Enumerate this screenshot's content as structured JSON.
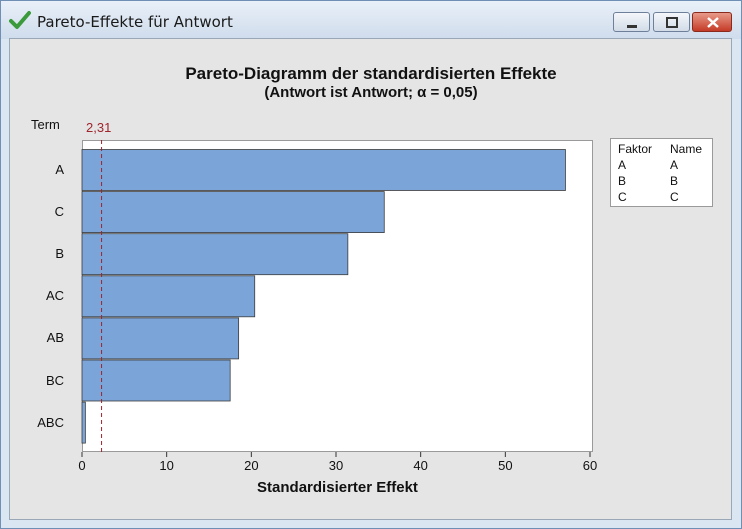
{
  "window": {
    "title": "Pareto-Effekte für Antwort",
    "controls": {
      "minimize": "minimize",
      "maximize": "maximize",
      "close": "close"
    }
  },
  "chart_data": {
    "type": "bar",
    "orientation": "horizontal",
    "title": "Pareto-Diagramm der standardisierten Effekte",
    "subtitle": "(Antwort ist Antwort; α = 0,05)",
    "xlabel": "Standardisierter Effekt",
    "ylabel": "Term",
    "categories": [
      "A",
      "C",
      "B",
      "AC",
      "AB",
      "BC",
      "ABC"
    ],
    "values": [
      57.1,
      35.7,
      31.4,
      20.4,
      18.5,
      17.5,
      0.4
    ],
    "xlim": [
      0,
      60
    ],
    "xticks": [
      "0",
      "10",
      "20",
      "30",
      "40",
      "50",
      "60"
    ],
    "reference_line": {
      "value": 2.31,
      "label": "2,31"
    },
    "bar_color": "#7ba4d8",
    "reference_color": "#a0242c",
    "grid": false,
    "legend": {
      "headers": [
        "Faktor",
        "Name"
      ],
      "rows": [
        [
          "A",
          "A"
        ],
        [
          "B",
          "B"
        ],
        [
          "C",
          "C"
        ]
      ],
      "placement": "right"
    }
  }
}
